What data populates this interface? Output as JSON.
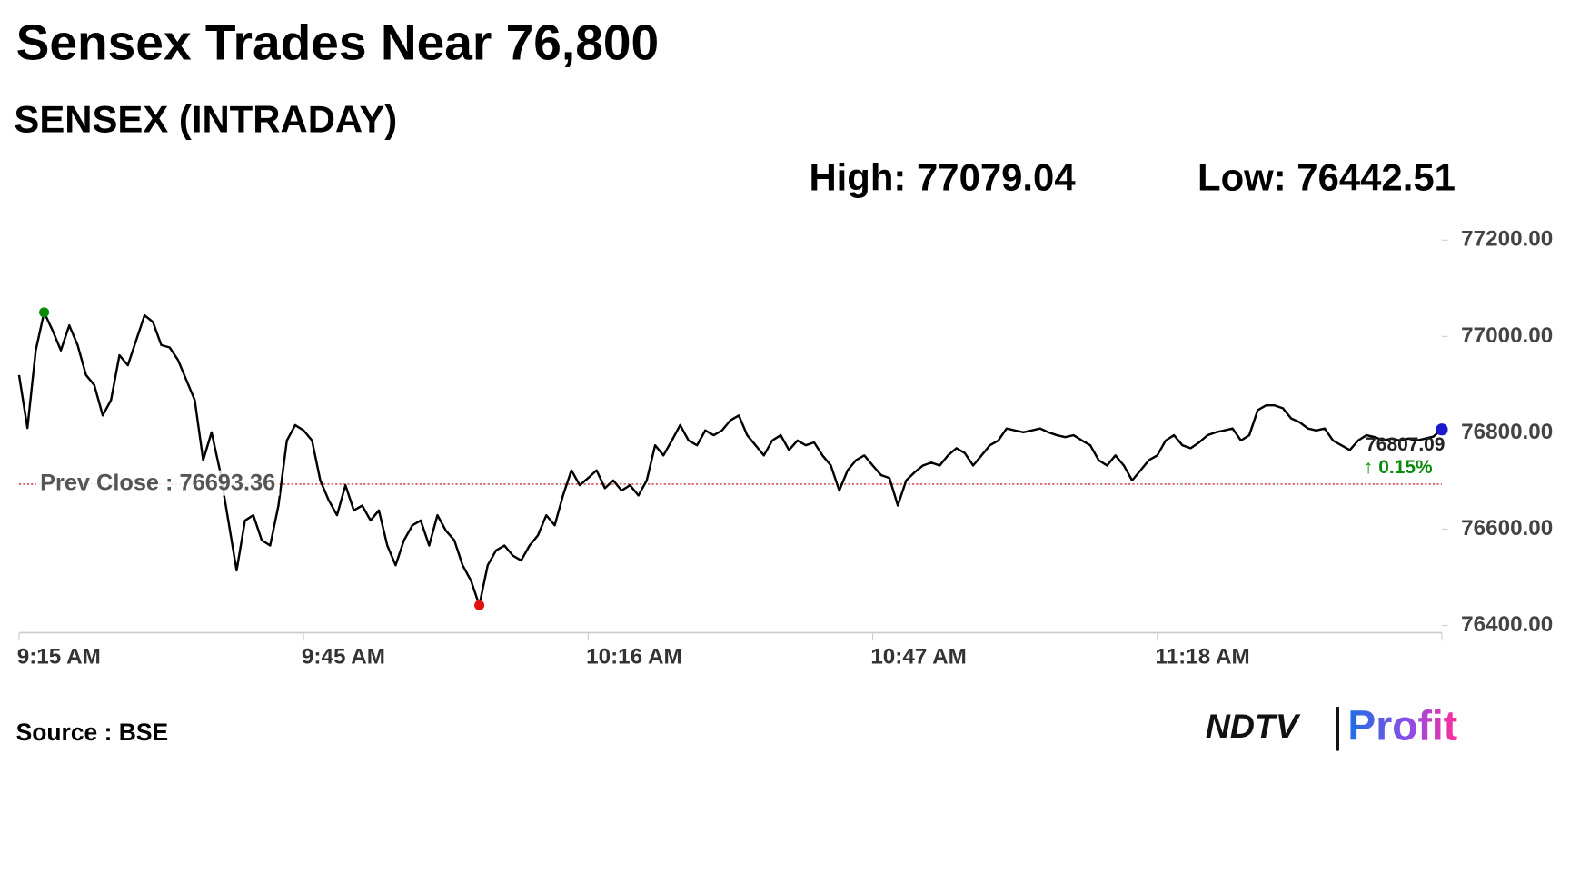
{
  "chart_data": {
    "type": "line",
    "title": "Sensex Trades Near 76,800",
    "subtitle": "SENSEX (INTRADAY)",
    "high_label": "High: 77079.04",
    "low_label": "Low: 76442.51",
    "source": "Source : BSE",
    "logo": [
      "NDTV",
      "Profit"
    ],
    "prev_close": {
      "value": 76693.36,
      "label": "Prev Close : 76693.36"
    },
    "last_label": "76807.09",
    "change_label": "↑ 0.15%",
    "series": [
      {
        "name": "SENSEX",
        "color": "#000000",
        "values": [
          76920,
          76810,
          76971,
          77050,
          77013,
          76971,
          77023,
          76982,
          76920,
          76899,
          76836,
          76868,
          76961,
          76940,
          76992,
          77044,
          77030,
          76982,
          76977,
          76951,
          76909,
          76868,
          76743,
          76801,
          76722,
          76618,
          76514,
          76618,
          76629,
          76577,
          76566,
          76649,
          76784,
          76816,
          76805,
          76784,
          76701,
          76660,
          76629,
          76691,
          76639,
          76649,
          76618,
          76639,
          76566,
          76525,
          76577,
          76608,
          76618,
          76566,
          76629,
          76597,
          76577,
          76525,
          76493,
          76442,
          76525,
          76556,
          76566,
          76545,
          76535,
          76566,
          76587,
          76629,
          76608,
          76670,
          76722,
          76691,
          76706,
          76722,
          76685,
          76701,
          76680,
          76691,
          76670,
          76701,
          76774,
          76753,
          76784,
          76816,
          76784,
          76774,
          76805,
          76795,
          76805,
          76826,
          76836,
          76795,
          76774,
          76753,
          76784,
          76795,
          76764,
          76784,
          76774,
          76780,
          76753,
          76732,
          76680,
          76722,
          76743,
          76753,
          76732,
          76712,
          76706,
          76649,
          76701,
          76718,
          76732,
          76738,
          76732,
          76753,
          76768,
          76758,
          76732,
          76753,
          76774,
          76784,
          76809,
          76805,
          76801,
          76805,
          76809,
          76801,
          76795,
          76791,
          76795,
          76784,
          76774,
          76743,
          76732,
          76753,
          76732,
          76701,
          76722,
          76743,
          76753,
          76784,
          76795,
          76774,
          76768,
          76780,
          76795,
          76801,
          76805,
          76809,
          76784,
          76795,
          76847,
          76857,
          76857,
          76851,
          76830,
          76822,
          76809,
          76805,
          76809,
          76784,
          76774,
          76764,
          76784,
          76795,
          76791,
          76784,
          76788,
          76784,
          76788,
          76784,
          76788,
          76792,
          76807
        ]
      }
    ],
    "xlim": [
      0,
      170
    ],
    "xticks": [
      {
        "value": 0,
        "label": "9:15 AM"
      },
      {
        "value": 34,
        "label": "9:45 AM"
      },
      {
        "value": 68,
        "label": "10:16 AM"
      },
      {
        "value": 102,
        "label": "10:47 AM"
      },
      {
        "value": 136,
        "label": "11:18 AM"
      }
    ],
    "ylim": [
      76385,
      77210
    ],
    "yticks": [
      {
        "value": 77200,
        "label": "77200.00"
      },
      {
        "value": 77000,
        "label": "77000.00"
      },
      {
        "value": 76800,
        "label": "76800.00"
      },
      {
        "value": 76600,
        "label": "76600.00"
      },
      {
        "value": 76400,
        "label": "76400.00"
      }
    ],
    "high_color": "#0a8a0a",
    "low_color": "#e01010",
    "last_color": "#1a1acc",
    "prev_close_color": "#c00000",
    "change_color": "#0a8a0a"
  }
}
